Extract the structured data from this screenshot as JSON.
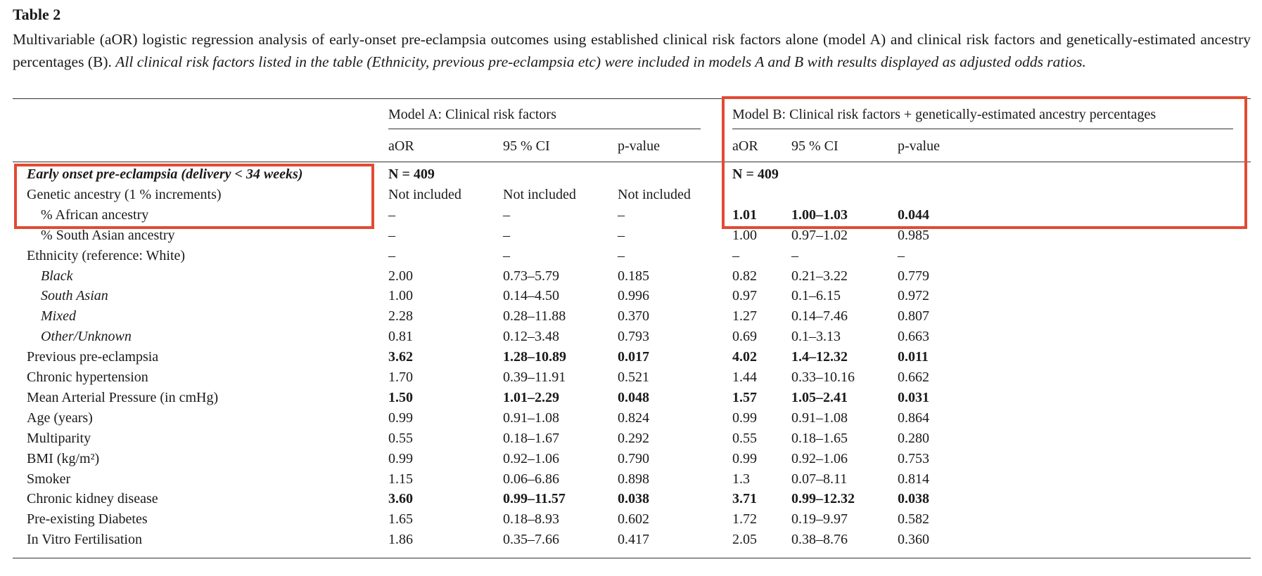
{
  "table_label": "Table 2",
  "caption": {
    "plain": "Multivariable (aOR) logistic regression analysis of early-onset pre-eclampsia outcomes using established clinical risk factors alone (model A) and clinical risk factors and genetically-estimated ancestry percentages (B). ",
    "italic": "All clinical risk factors listed in the table (Ethnicity, previous pre-eclampsia etc) were included in models A and B with results displayed as adjusted odds ratios."
  },
  "groups": {
    "model_a": "Model A: Clinical risk factors",
    "model_b": "Model B: Clinical risk factors + genetically-estimated ancestry percentages"
  },
  "columns": [
    "aOR",
    "95 % CI",
    "p-value",
    "aOR",
    "95 % CI",
    "p-value"
  ],
  "rows": [
    {
      "label": "Early onset pre-eclampsia (delivery < 34 weeks)",
      "style": "bi",
      "indent": false,
      "cells": [
        "N = 409",
        "",
        "",
        "N = 409",
        "",
        ""
      ],
      "bold": [
        true,
        false,
        false,
        true,
        false,
        false
      ]
    },
    {
      "label": "Genetic ancestry (1 % increments)",
      "style": "",
      "indent": false,
      "cells": [
        "Not included",
        "Not included",
        "Not included",
        "",
        "",
        ""
      ],
      "bold": [
        false,
        false,
        false,
        false,
        false,
        false
      ]
    },
    {
      "label": "% African ancestry",
      "style": "",
      "indent": true,
      "cells": [
        "–",
        "–",
        "–",
        "1.01",
        "1.00–1.03",
        "0.044"
      ],
      "bold": [
        false,
        false,
        false,
        true,
        true,
        true
      ]
    },
    {
      "label": "% South Asian ancestry",
      "style": "",
      "indent": true,
      "cells": [
        "–",
        "–",
        "–",
        "1.00",
        "0.97–1.02",
        "0.985"
      ],
      "bold": [
        false,
        false,
        false,
        false,
        false,
        false
      ]
    },
    {
      "label": "Ethnicity (reference: White)",
      "style": "",
      "indent": false,
      "cells": [
        "–",
        "–",
        "–",
        "–",
        "–",
        "–"
      ],
      "bold": [
        false,
        false,
        false,
        false,
        false,
        false
      ]
    },
    {
      "label": "Black",
      "style": "it",
      "indent": true,
      "cells": [
        "2.00",
        "0.73–5.79",
        "0.185",
        "0.82",
        "0.21–3.22",
        "0.779"
      ],
      "bold": [
        false,
        false,
        false,
        false,
        false,
        false
      ]
    },
    {
      "label": "South Asian",
      "style": "it",
      "indent": true,
      "cells": [
        "1.00",
        "0.14–4.50",
        "0.996",
        "0.97",
        "0.1–6.15",
        "0.972"
      ],
      "bold": [
        false,
        false,
        false,
        false,
        false,
        false
      ]
    },
    {
      "label": "Mixed",
      "style": "it",
      "indent": true,
      "cells": [
        "2.28",
        "0.28–11.88",
        "0.370",
        "1.27",
        "0.14–7.46",
        "0.807"
      ],
      "bold": [
        false,
        false,
        false,
        false,
        false,
        false
      ]
    },
    {
      "label": "Other/Unknown",
      "style": "it",
      "indent": true,
      "cells": [
        "0.81",
        "0.12–3.48",
        "0.793",
        "0.69",
        "0.1–3.13",
        "0.663"
      ],
      "bold": [
        false,
        false,
        false,
        false,
        false,
        false
      ]
    },
    {
      "label": "Previous pre-eclampsia",
      "style": "",
      "indent": false,
      "cells": [
        "3.62",
        "1.28–10.89",
        "0.017",
        "4.02",
        "1.4–12.32",
        "0.011"
      ],
      "bold": [
        true,
        true,
        true,
        true,
        true,
        true
      ]
    },
    {
      "label": "Chronic hypertension",
      "style": "",
      "indent": false,
      "cells": [
        "1.70",
        "0.39–11.91",
        "0.521",
        "1.44",
        "0.33–10.16",
        "0.662"
      ],
      "bold": [
        false,
        false,
        false,
        false,
        false,
        false
      ]
    },
    {
      "label": "Mean Arterial Pressure (in cmHg)",
      "style": "",
      "indent": false,
      "cells": [
        "1.50",
        "1.01–2.29",
        "0.048",
        "1.57",
        "1.05–2.41",
        "0.031"
      ],
      "bold": [
        true,
        true,
        true,
        true,
        true,
        true
      ]
    },
    {
      "label": "Age (years)",
      "style": "",
      "indent": false,
      "cells": [
        "0.99",
        "0.91–1.08",
        "0.824",
        "0.99",
        "0.91–1.08",
        "0.864"
      ],
      "bold": [
        false,
        false,
        false,
        false,
        false,
        false
      ]
    },
    {
      "label": "Multiparity",
      "style": "",
      "indent": false,
      "cells": [
        "0.55",
        "0.18–1.67",
        "0.292",
        "0.55",
        "0.18–1.65",
        "0.280"
      ],
      "bold": [
        false,
        false,
        false,
        false,
        false,
        false
      ]
    },
    {
      "label": "BMI (kg/m²)",
      "style": "",
      "indent": false,
      "cells": [
        "0.99",
        "0.92–1.06",
        "0.790",
        "0.99",
        "0.92–1.06",
        "0.753"
      ],
      "bold": [
        false,
        false,
        false,
        false,
        false,
        false
      ]
    },
    {
      "label": "Smoker",
      "style": "",
      "indent": false,
      "cells": [
        "1.15",
        "0.06–6.86",
        "0.898",
        "1.3",
        "0.07–8.11",
        "0.814"
      ],
      "bold": [
        false,
        false,
        false,
        false,
        false,
        false
      ]
    },
    {
      "label": "Chronic kidney disease",
      "style": "",
      "indent": false,
      "cells": [
        "3.60",
        "0.99–11.57",
        "0.038",
        "3.71",
        "0.99–12.32",
        "0.038"
      ],
      "bold": [
        true,
        true,
        true,
        true,
        true,
        true
      ]
    },
    {
      "label": "Pre-existing Diabetes",
      "style": "",
      "indent": false,
      "cells": [
        "1.65",
        "0.18–8.93",
        "0.602",
        "1.72",
        "0.19–9.97",
        "0.582"
      ],
      "bold": [
        false,
        false,
        false,
        false,
        false,
        false
      ]
    },
    {
      "label": "In Vitro Fertilisation",
      "style": "",
      "indent": false,
      "cells": [
        "1.86",
        "0.35–7.66",
        "0.417",
        "2.05",
        "0.38–8.76",
        "0.360"
      ],
      "bold": [
        false,
        false,
        false,
        false,
        false,
        false
      ]
    }
  ],
  "colors": {
    "highlight_box": "#e24a33",
    "text": "#1a1a1a",
    "rule": "#333333"
  }
}
